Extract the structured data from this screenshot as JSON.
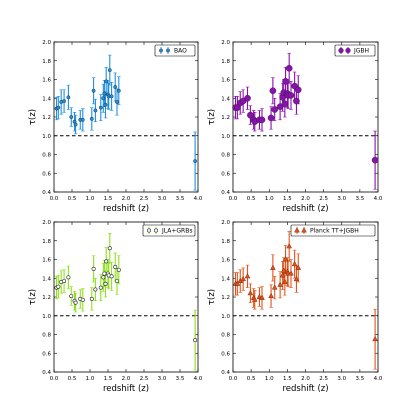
{
  "chart_data": [
    {
      "type": "scatter",
      "panel": "top-left",
      "xlabel": "redshift (z)",
      "ylabel": "τ(z)",
      "xlim": [
        0,
        4
      ],
      "ylim": [
        0.4,
        2.0
      ],
      "xticks": [
        "0.0",
        "0.5",
        "1.0",
        "1.5",
        "2.0",
        "2.5",
        "3.0",
        "3.5",
        "4.0"
      ],
      "yticks": [
        "0.4",
        "0.6",
        "0.8",
        "1.0",
        "1.2",
        "1.4",
        "1.6",
        "1.8",
        "2.0"
      ],
      "reference_line_y": 1.0,
      "legend_position": "top-right",
      "series": [
        {
          "name": "BAO",
          "color": "#1f8fe0",
          "marker": "circle",
          "marker_size": "small",
          "filled": true,
          "points": [
            {
              "x": 0.07,
              "y": 1.29,
              "err": 0.12
            },
            {
              "x": 0.12,
              "y": 1.3,
              "err": 0.12
            },
            {
              "x": 0.2,
              "y": 1.36,
              "err": 0.13
            },
            {
              "x": 0.28,
              "y": 1.37,
              "err": 0.12
            },
            {
              "x": 0.4,
              "y": 1.41,
              "err": 0.13
            },
            {
              "x": 0.48,
              "y": 1.2,
              "err": 0.1
            },
            {
              "x": 0.57,
              "y": 1.15,
              "err": 0.1
            },
            {
              "x": 0.6,
              "y": 1.12,
              "err": 0.1
            },
            {
              "x": 0.73,
              "y": 1.17,
              "err": 0.1
            },
            {
              "x": 0.8,
              "y": 1.17,
              "err": 0.12
            },
            {
              "x": 1.05,
              "y": 1.18,
              "err": 0.12
            },
            {
              "x": 1.1,
              "y": 1.48,
              "err": 0.14
            },
            {
              "x": 1.15,
              "y": 1.27,
              "err": 0.12
            },
            {
              "x": 1.3,
              "y": 1.3,
              "err": 0.14
            },
            {
              "x": 1.37,
              "y": 1.4,
              "err": 0.15
            },
            {
              "x": 1.4,
              "y": 1.45,
              "err": 0.14
            },
            {
              "x": 1.43,
              "y": 1.33,
              "err": 0.14
            },
            {
              "x": 1.45,
              "y": 1.58,
              "err": 0.15
            },
            {
              "x": 1.5,
              "y": 1.44,
              "err": 0.15
            },
            {
              "x": 1.52,
              "y": 1.42,
              "err": 0.14
            },
            {
              "x": 1.55,
              "y": 1.7,
              "err": 0.16
            },
            {
              "x": 1.6,
              "y": 1.42,
              "err": 0.15
            },
            {
              "x": 1.7,
              "y": 1.52,
              "err": 0.15
            },
            {
              "x": 1.75,
              "y": 1.36,
              "err": 0.14
            },
            {
              "x": 1.8,
              "y": 1.48,
              "err": 0.15
            },
            {
              "x": 3.92,
              "y": 0.73,
              "err": 0.31
            }
          ]
        }
      ]
    },
    {
      "type": "scatter",
      "panel": "top-right",
      "xlabel": "redshift (z)",
      "ylabel": "τ(z)",
      "xlim": [
        0,
        4
      ],
      "ylim": [
        0.4,
        2.0
      ],
      "xticks": [
        "0.0",
        "0.5",
        "1.0",
        "1.5",
        "2.0",
        "2.5",
        "3.0",
        "3.5",
        "4.0"
      ],
      "yticks": [
        "0.4",
        "0.6",
        "0.8",
        "1.0",
        "1.2",
        "1.4",
        "1.6",
        "1.8",
        "2.0"
      ],
      "reference_line_y": 1.0,
      "legend_position": "top-right",
      "series": [
        {
          "name": "JGBH",
          "color": "#8b10b0",
          "marker": "circle",
          "marker_size": "large",
          "filled": true,
          "points": [
            {
              "x": 0.07,
              "y": 1.3,
              "err": 0.12
            },
            {
              "x": 0.12,
              "y": 1.3,
              "err": 0.12
            },
            {
              "x": 0.2,
              "y": 1.35,
              "err": 0.12
            },
            {
              "x": 0.28,
              "y": 1.37,
              "err": 0.12
            },
            {
              "x": 0.4,
              "y": 1.4,
              "err": 0.12
            },
            {
              "x": 0.48,
              "y": 1.22,
              "err": 0.1
            },
            {
              "x": 0.57,
              "y": 1.17,
              "err": 0.1
            },
            {
              "x": 0.6,
              "y": 1.15,
              "err": 0.1
            },
            {
              "x": 0.73,
              "y": 1.17,
              "err": 0.1
            },
            {
              "x": 0.8,
              "y": 1.17,
              "err": 0.12
            },
            {
              "x": 1.05,
              "y": 1.19,
              "err": 0.12
            },
            {
              "x": 1.1,
              "y": 1.48,
              "err": 0.14
            },
            {
              "x": 1.15,
              "y": 1.28,
              "err": 0.12
            },
            {
              "x": 1.3,
              "y": 1.31,
              "err": 0.14
            },
            {
              "x": 1.37,
              "y": 1.41,
              "err": 0.15
            },
            {
              "x": 1.4,
              "y": 1.46,
              "err": 0.14
            },
            {
              "x": 1.43,
              "y": 1.34,
              "err": 0.14
            },
            {
              "x": 1.45,
              "y": 1.58,
              "err": 0.15
            },
            {
              "x": 1.5,
              "y": 1.45,
              "err": 0.15
            },
            {
              "x": 1.52,
              "y": 1.43,
              "err": 0.14
            },
            {
              "x": 1.55,
              "y": 1.72,
              "err": 0.16
            },
            {
              "x": 1.6,
              "y": 1.43,
              "err": 0.15
            },
            {
              "x": 1.7,
              "y": 1.53,
              "err": 0.15
            },
            {
              "x": 1.75,
              "y": 1.37,
              "err": 0.14
            },
            {
              "x": 1.8,
              "y": 1.49,
              "err": 0.15
            },
            {
              "x": 3.92,
              "y": 0.74,
              "err": 0.31
            }
          ]
        }
      ]
    },
    {
      "type": "scatter",
      "panel": "bottom-left",
      "xlabel": "redshift (z)",
      "ylabel": "τ(z)",
      "xlim": [
        0,
        4
      ],
      "ylim": [
        0.4,
        2.0
      ],
      "xticks": [
        "0.0",
        "0.5",
        "1.0",
        "1.5",
        "2.0",
        "2.5",
        "3.0",
        "3.5",
        "4.0"
      ],
      "yticks": [
        "0.4",
        "0.6",
        "0.8",
        "1.0",
        "1.2",
        "1.4",
        "1.6",
        "1.8",
        "2.0"
      ],
      "reference_line_y": 1.0,
      "legend_position": "top-right",
      "series": [
        {
          "name": "JLA+GRBs",
          "color": "#8ee11a",
          "marker": "circle",
          "marker_size": "small",
          "filled": false,
          "points": [
            {
              "x": 0.07,
              "y": 1.3,
              "err": 0.12
            },
            {
              "x": 0.12,
              "y": 1.31,
              "err": 0.12
            },
            {
              "x": 0.2,
              "y": 1.36,
              "err": 0.12
            },
            {
              "x": 0.28,
              "y": 1.37,
              "err": 0.12
            },
            {
              "x": 0.4,
              "y": 1.41,
              "err": 0.12
            },
            {
              "x": 0.48,
              "y": 1.21,
              "err": 0.1
            },
            {
              "x": 0.57,
              "y": 1.16,
              "err": 0.1
            },
            {
              "x": 0.6,
              "y": 1.14,
              "err": 0.1
            },
            {
              "x": 0.73,
              "y": 1.18,
              "err": 0.1
            },
            {
              "x": 0.8,
              "y": 1.17,
              "err": 0.12
            },
            {
              "x": 1.05,
              "y": 1.18,
              "err": 0.12
            },
            {
              "x": 1.1,
              "y": 1.5,
              "err": 0.14
            },
            {
              "x": 1.15,
              "y": 1.28,
              "err": 0.12
            },
            {
              "x": 1.3,
              "y": 1.3,
              "err": 0.14
            },
            {
              "x": 1.37,
              "y": 1.41,
              "err": 0.15
            },
            {
              "x": 1.4,
              "y": 1.45,
              "err": 0.14
            },
            {
              "x": 1.43,
              "y": 1.34,
              "err": 0.14
            },
            {
              "x": 1.45,
              "y": 1.58,
              "err": 0.15
            },
            {
              "x": 1.5,
              "y": 1.45,
              "err": 0.15
            },
            {
              "x": 1.52,
              "y": 1.43,
              "err": 0.14
            },
            {
              "x": 1.55,
              "y": 1.72,
              "err": 0.16
            },
            {
              "x": 1.6,
              "y": 1.42,
              "err": 0.15
            },
            {
              "x": 1.7,
              "y": 1.52,
              "err": 0.15
            },
            {
              "x": 1.75,
              "y": 1.37,
              "err": 0.14
            },
            {
              "x": 1.8,
              "y": 1.49,
              "err": 0.15
            },
            {
              "x": 3.92,
              "y": 0.74,
              "err": 0.32
            }
          ]
        }
      ]
    },
    {
      "type": "scatter",
      "panel": "bottom-right",
      "xlabel": "redshift (z)",
      "ylabel": "τ(z)",
      "xlim": [
        0,
        4
      ],
      "ylim": [
        0.4,
        2.0
      ],
      "xticks": [
        "0.0",
        "0.5",
        "1.0",
        "1.5",
        "2.0",
        "2.5",
        "3.0",
        "3.5",
        "4.0"
      ],
      "yticks": [
        "0.4",
        "0.6",
        "0.8",
        "1.0",
        "1.2",
        "1.4",
        "1.6",
        "1.8",
        "2.0"
      ],
      "reference_line_y": 1.0,
      "legend_position": "top-right",
      "series": [
        {
          "name": "Planck TT+JGBH",
          "color": "#e5521a",
          "marker": "triangle",
          "marker_size": "medium",
          "filled": true,
          "points": [
            {
              "x": 0.07,
              "y": 1.34,
              "err": 0.12
            },
            {
              "x": 0.12,
              "y": 1.34,
              "err": 0.12
            },
            {
              "x": 0.2,
              "y": 1.37,
              "err": 0.12
            },
            {
              "x": 0.28,
              "y": 1.39,
              "err": 0.12
            },
            {
              "x": 0.4,
              "y": 1.42,
              "err": 0.12
            },
            {
              "x": 0.48,
              "y": 1.24,
              "err": 0.1
            },
            {
              "x": 0.57,
              "y": 1.19,
              "err": 0.1
            },
            {
              "x": 0.6,
              "y": 1.17,
              "err": 0.1
            },
            {
              "x": 0.73,
              "y": 1.2,
              "err": 0.1
            },
            {
              "x": 0.8,
              "y": 1.19,
              "err": 0.12
            },
            {
              "x": 1.05,
              "y": 1.21,
              "err": 0.12
            },
            {
              "x": 1.1,
              "y": 1.51,
              "err": 0.14
            },
            {
              "x": 1.15,
              "y": 1.3,
              "err": 0.12
            },
            {
              "x": 1.3,
              "y": 1.33,
              "err": 0.14
            },
            {
              "x": 1.37,
              "y": 1.43,
              "err": 0.15
            },
            {
              "x": 1.4,
              "y": 1.48,
              "err": 0.14
            },
            {
              "x": 1.43,
              "y": 1.36,
              "err": 0.14
            },
            {
              "x": 1.45,
              "y": 1.6,
              "err": 0.15
            },
            {
              "x": 1.5,
              "y": 1.47,
              "err": 0.15
            },
            {
              "x": 1.52,
              "y": 1.45,
              "err": 0.14
            },
            {
              "x": 1.55,
              "y": 1.74,
              "err": 0.16
            },
            {
              "x": 1.6,
              "y": 1.45,
              "err": 0.15
            },
            {
              "x": 1.7,
              "y": 1.55,
              "err": 0.15
            },
            {
              "x": 1.75,
              "y": 1.39,
              "err": 0.14
            },
            {
              "x": 1.8,
              "y": 1.51,
              "err": 0.15
            },
            {
              "x": 3.92,
              "y": 0.75,
              "err": 0.32
            }
          ]
        }
      ]
    }
  ]
}
